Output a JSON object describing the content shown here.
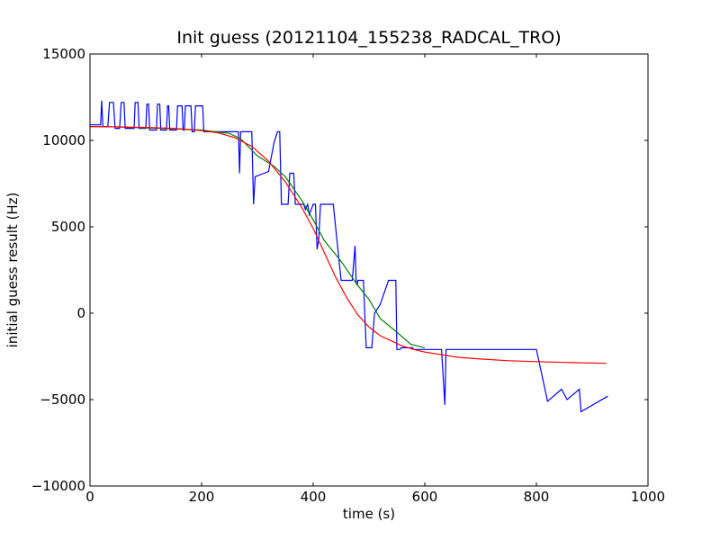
{
  "chart_data": {
    "type": "line",
    "title": "Init guess (20121104_155238_RADCAL_TRO)",
    "xlabel": "time (s)",
    "ylabel": "initial guess result (Hz)",
    "xlim": [
      0,
      1000
    ],
    "ylim": [
      -10000,
      15000
    ],
    "xticks": [
      0,
      200,
      400,
      600,
      800,
      1000
    ],
    "xtick_labels": [
      "0",
      "200",
      "400",
      "600",
      "800",
      "1000"
    ],
    "yticks": [
      -10000,
      -5000,
      0,
      5000,
      10000,
      15000
    ],
    "ytick_labels": [
      "−10000",
      "−5000",
      "0",
      "5000",
      "10000",
      "15000"
    ],
    "grid": false,
    "legend": "none",
    "series": [
      {
        "color": "#0000ff",
        "x": [
          0,
          19,
          21,
          23,
          32,
          35,
          42,
          45,
          53,
          56,
          61,
          63,
          79,
          81,
          86,
          88,
          100,
          102,
          105,
          107,
          119,
          121,
          125,
          127,
          137,
          139,
          141,
          143,
          155,
          157,
          165,
          167,
          169,
          171,
          181,
          183,
          187,
          189,
          202,
          204,
          206,
          208,
          260,
          266,
          268,
          270,
          290,
          293,
          296,
          312,
          320,
          330,
          336,
          340,
          343,
          355,
          358,
          360,
          365,
          368,
          380,
          383,
          386,
          390,
          393,
          400,
          404,
          407,
          410,
          413,
          415,
          418,
          420,
          436,
          450,
          452,
          470,
          475,
          477,
          479,
          480,
          482,
          490,
          495,
          500,
          502,
          505,
          510,
          520,
          535,
          548,
          550,
          555,
          558,
          560,
          575,
          578,
          580,
          590,
          615,
          630,
          636,
          638,
          640,
          665,
          800,
          820,
          845,
          855,
          877,
          880,
          928
        ],
        "values": [
          10900,
          10900,
          12300,
          10800,
          10800,
          12200,
          12200,
          10700,
          10700,
          12200,
          12200,
          10700,
          10700,
          12200,
          12200,
          10700,
          10700,
          12100,
          12100,
          10600,
          10600,
          12100,
          12100,
          10600,
          10600,
          12000,
          12000,
          10600,
          10600,
          12000,
          12000,
          10600,
          10600,
          12000,
          12000,
          10500,
          10500,
          12000,
          12000,
          10500,
          10500,
          10500,
          10500,
          10500,
          8100,
          10500,
          10500,
          6300,
          7900,
          8100,
          8200,
          9900,
          10500,
          10500,
          6300,
          6300,
          8100,
          8100,
          8100,
          6300,
          6300,
          6300,
          6000,
          6300,
          5700,
          6300,
          6300,
          3700,
          4300,
          6300,
          6300,
          6300,
          6300,
          6300,
          1900,
          1900,
          1900,
          3900,
          1800,
          1600,
          1900,
          1900,
          1900,
          -2000,
          -2000,
          -2000,
          -2000,
          0,
          500,
          1900,
          1900,
          -2100,
          -2100,
          -2000,
          -2000,
          -2000,
          -2000,
          -2100,
          -2100,
          -2100,
          -2100,
          -5300,
          -2100,
          -2100,
          -2100,
          -2100,
          -5100,
          -4400,
          -5000,
          -4400,
          -5700,
          -4800
        ]
      },
      {
        "color": "#008000",
        "x": [
          0,
          50,
          100,
          150,
          200,
          250,
          270,
          300,
          330,
          350,
          380,
          400,
          420,
          450,
          480,
          500,
          520,
          550,
          575,
          600
        ],
        "values": [
          10800,
          10780,
          10720,
          10670,
          10600,
          10400,
          10100,
          9100,
          8500,
          7900,
          6500,
          5400,
          4200,
          3000,
          1600,
          800,
          -300,
          -1100,
          -1800,
          -2000
        ]
      },
      {
        "color": "#ff0000",
        "x": [
          0,
          50,
          100,
          150,
          200,
          230,
          260,
          290,
          320,
          350,
          380,
          400,
          420,
          440,
          460,
          480,
          500,
          520,
          540,
          560,
          580,
          600,
          630,
          660,
          700,
          750,
          800,
          850,
          925
        ],
        "values": [
          10800,
          10780,
          10750,
          10700,
          10560,
          10430,
          10150,
          9650,
          8800,
          7600,
          6100,
          4900,
          3500,
          2100,
          900,
          -100,
          -800,
          -1300,
          -1600,
          -1900,
          -2100,
          -2250,
          -2400,
          -2550,
          -2650,
          -2750,
          -2800,
          -2850,
          -2900
        ]
      }
    ]
  }
}
